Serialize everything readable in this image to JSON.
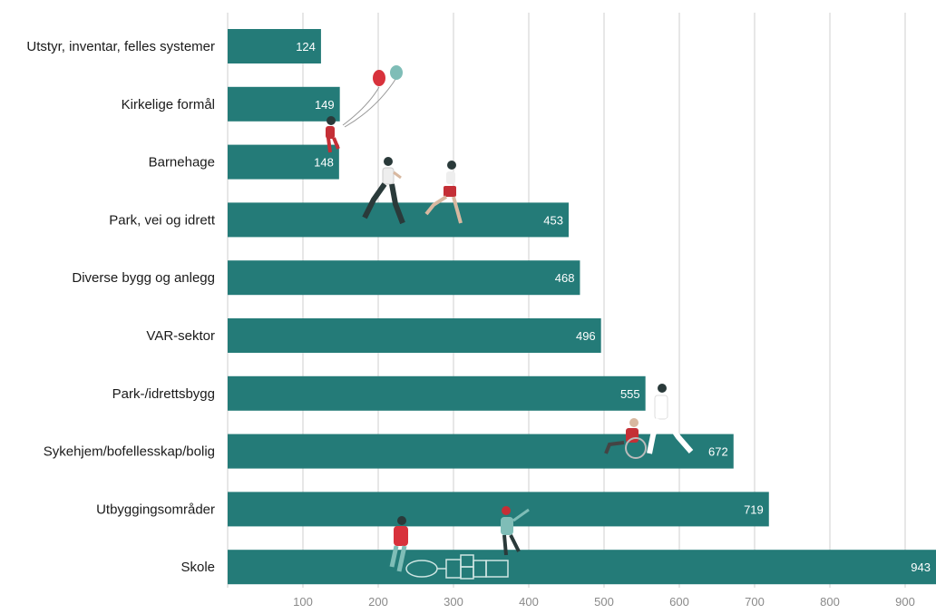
{
  "chart_data": {
    "type": "bar",
    "orientation": "horizontal",
    "categories": [
      "Utstyr, inventar, felles systemer",
      "Kirkelige formål",
      "Barnehage",
      "Park, vei og idrett",
      "Diverse bygg og anlegg",
      "VAR-sektor",
      "Park-/idrettsbygg",
      "Sykehjem/bofellesskap/bolig",
      "Utbyggingsområder",
      "Skole"
    ],
    "values": [
      124,
      149,
      148,
      453,
      468,
      496,
      555,
      672,
      719,
      943
    ],
    "xticks": [
      100,
      200,
      300,
      400,
      500,
      600,
      700,
      800,
      900
    ],
    "xlim": [
      0,
      943
    ],
    "grid": true,
    "bar_color": "#247b78"
  }
}
